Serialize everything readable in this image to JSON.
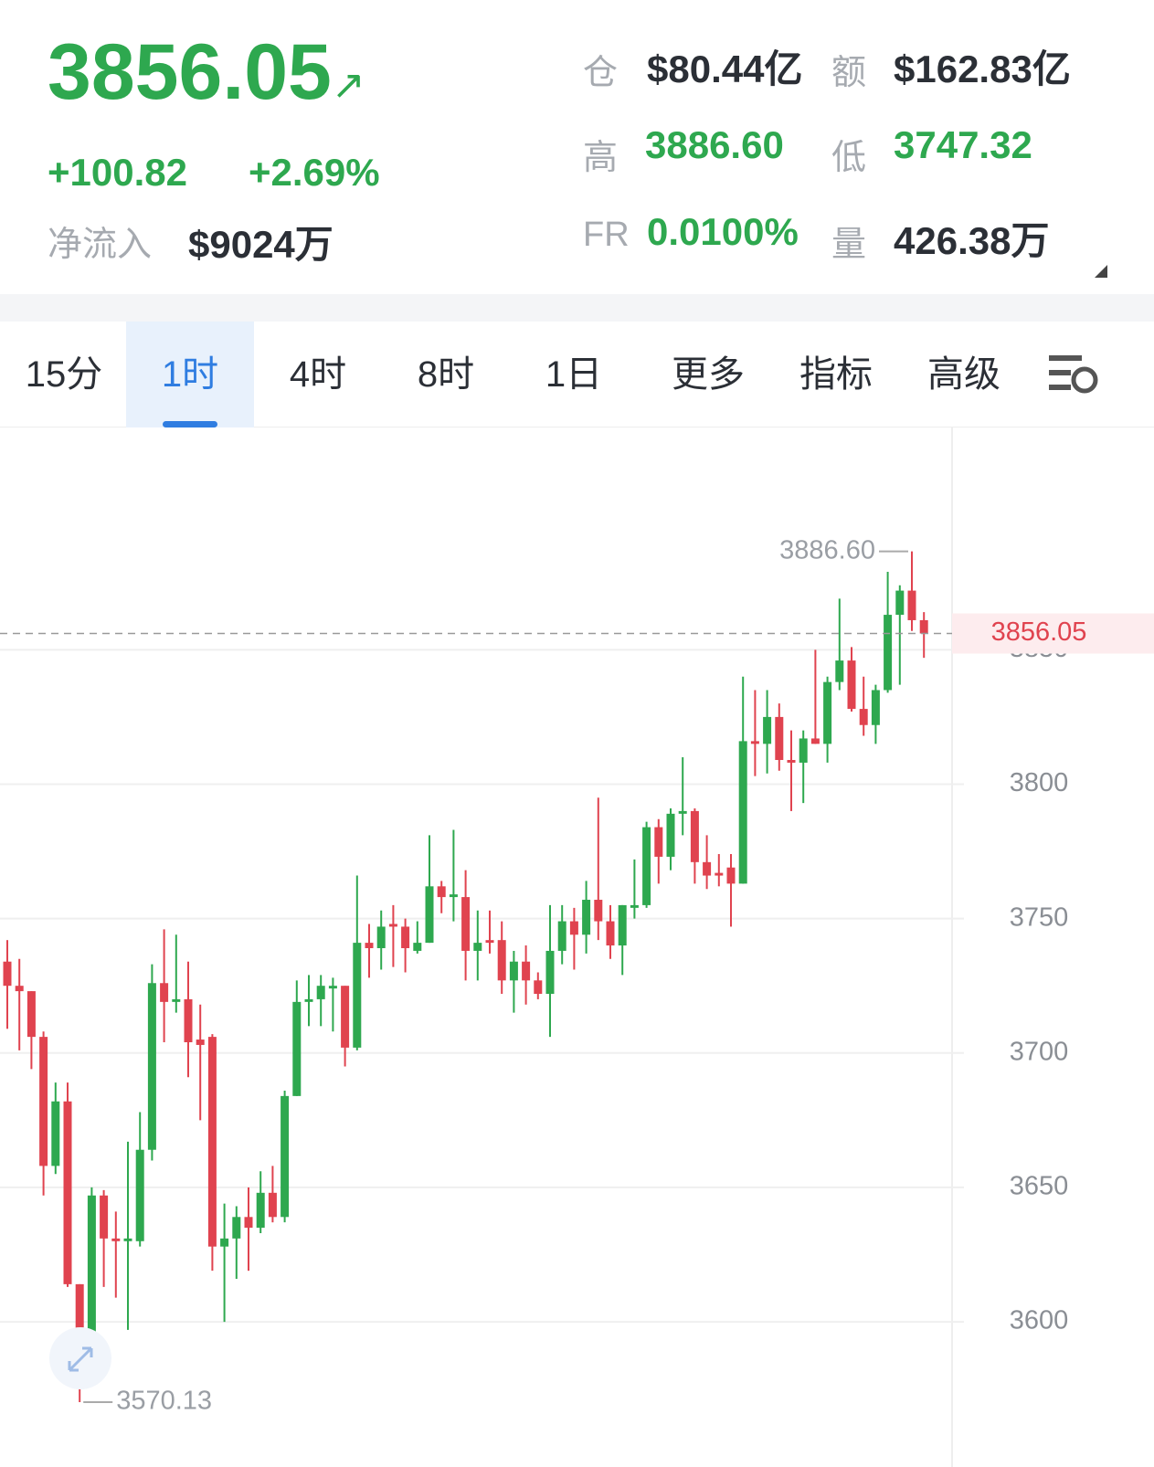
{
  "header": {
    "price": "3856.05",
    "change": "+100.82",
    "change_pct": "+2.69%",
    "net_inflow_label": "净流入",
    "net_inflow": "$9024万",
    "stats": [
      {
        "label": "仓",
        "value": "$80.44亿"
      },
      {
        "label": "额",
        "value": "$162.83亿"
      },
      {
        "label": "高",
        "value": "3886.60"
      },
      {
        "label": "低",
        "value": "3747.32"
      },
      {
        "label": "FR",
        "value": "0.0100%"
      },
      {
        "label": "量",
        "value": "426.38万"
      }
    ]
  },
  "tabs": [
    "15分",
    "1时",
    "4时",
    "8时",
    "1日",
    "更多",
    "指标",
    "高级"
  ],
  "active_tab": "1时",
  "chart_data": {
    "type": "candlestick",
    "up_color": "#2ea84f",
    "down_color": "#e0434f",
    "open": [
      3734,
      3725,
      3723,
      3706,
      3658,
      3682,
      3614,
      3594,
      3647,
      3631,
      3630,
      3630,
      3664,
      3726,
      3719,
      3720,
      3705,
      3706,
      3628,
      3631,
      3639,
      3635,
      3648,
      3639,
      3684,
      3719,
      3720,
      3724,
      3725,
      3702,
      3741,
      3739,
      3748,
      3747,
      3738,
      3741,
      3762,
      3758,
      3758,
      3738,
      3742,
      3742,
      3727,
      3734,
      3727,
      3722,
      3738,
      3749,
      3744,
      3757,
      3749,
      3740,
      3754,
      3755,
      3784,
      3773,
      3789,
      3790,
      3771,
      3767,
      3769,
      3763,
      3816,
      3815,
      3825,
      3809,
      3808,
      3817,
      3815,
      3838,
      3846,
      3828,
      3822,
      3835,
      3863,
      3872,
      3861
    ],
    "high": [
      3742,
      3735,
      3723,
      3708,
      3689,
      3689,
      3614,
      3650,
      3649,
      3641,
      3667,
      3678,
      3733,
      3746,
      3744,
      3734,
      3718,
      3707,
      3644,
      3643,
      3650,
      3656,
      3658,
      3686,
      3727,
      3729,
      3729,
      3728,
      3725,
      3766,
      3748,
      3753,
      3755,
      3750,
      3749,
      3781,
      3764,
      3783,
      3768,
      3753,
      3753,
      3749,
      3738,
      3740,
      3730,
      3755,
      3755,
      3754,
      3764,
      3795,
      3755,
      3755,
      3772,
      3786,
      3787,
      3791,
      3810,
      3791,
      3781,
      3774,
      3774,
      3840,
      3835,
      3835,
      3830,
      3820,
      3820,
      3850,
      3840,
      3869,
      3851,
      3840,
      3837,
      3879,
      3874,
      3886.6,
      3864
    ],
    "low": [
      3709,
      3701,
      3694,
      3647,
      3655,
      3613,
      3570.13,
      3577,
      3613,
      3609,
      3597,
      3628,
      3660,
      3704,
      3715,
      3691,
      3675,
      3619,
      3600,
      3616,
      3619,
      3633,
      3637,
      3637,
      3684,
      3710,
      3710,
      3708,
      3695,
      3701,
      3728,
      3731,
      3732,
      3730,
      3737,
      3741,
      3752,
      3749,
      3727,
      3727,
      3737,
      3722,
      3715,
      3718,
      3720,
      3706,
      3733,
      3731,
      3737,
      3742,
      3735,
      3729,
      3750,
      3754,
      3763,
      3768,
      3781,
      3763,
      3761,
      3762,
      3747,
      3763,
      3803,
      3804,
      3805,
      3790,
      3793,
      3815,
      3808,
      3835,
      3827,
      3818,
      3815,
      3834,
      3837,
      3857,
      3847
    ],
    "close": [
      3725,
      3723,
      3706,
      3658,
      3682,
      3614,
      3594,
      3647,
      3631,
      3630,
      3631,
      3664,
      3726,
      3719,
      3720,
      3704,
      3703,
      3628,
      3631,
      3639,
      3635,
      3648,
      3639,
      3684,
      3719,
      3720,
      3725,
      3725,
      3702,
      3741,
      3739,
      3747,
      3747,
      3739,
      3741,
      3762,
      3758,
      3759,
      3738,
      3741,
      3741,
      3727,
      3734,
      3727,
      3722,
      3738,
      3749,
      3744,
      3757,
      3749,
      3740,
      3755,
      3755,
      3784,
      3773,
      3789,
      3790,
      3771,
      3766,
      3766,
      3763,
      3816,
      3815,
      3825,
      3809,
      3808,
      3817,
      3815,
      3838,
      3846,
      3828,
      3822,
      3835,
      3863,
      3872,
      3861,
      3856.05
    ],
    "ylim": [
      3546,
      3932
    ],
    "yticks": [
      3600,
      3650,
      3700,
      3750,
      3800,
      3850
    ],
    "grid": true,
    "high_label": "3886.60",
    "low_label": "3570.13",
    "last_price": {
      "value": 3856.05,
      "label": "3856.05"
    }
  }
}
